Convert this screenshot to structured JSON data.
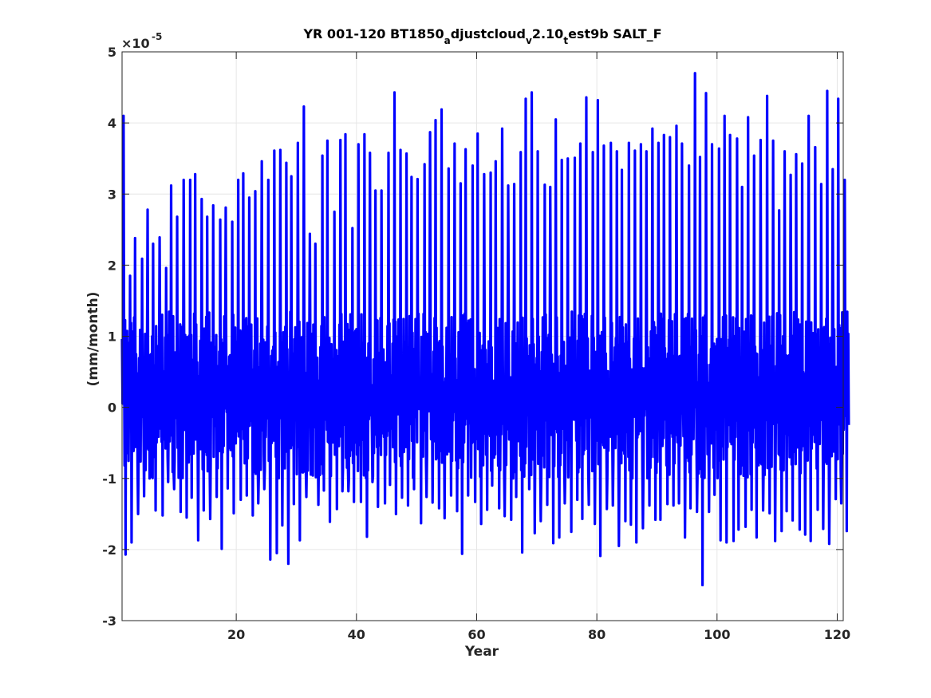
{
  "chart_data": {
    "type": "line",
    "title_parts": {
      "a": "YR 001-120 BT1850",
      "sub1": "a",
      "b": "djustcloud",
      "sub2": "v",
      "c": "2.10",
      "sub3": "t",
      "d": "est9b SALT_F"
    },
    "xlabel": "Year",
    "ylabel": "(mm/month)",
    "exponent_base": "×10",
    "exponent_power": "-5",
    "xlim": [
      1,
      121
    ],
    "ylim": [
      -3,
      5
    ],
    "xticks": [
      20,
      40,
      60,
      80,
      100,
      120
    ],
    "yticks": [
      -3,
      -2,
      -1,
      0,
      1,
      2,
      3,
      4,
      5
    ],
    "grid": true,
    "line_color": "#0000ff",
    "series": [
      {
        "sampling": "monthly",
        "annual_max": [
          4.1,
          1.85,
          2.38,
          2.09,
          2.78,
          2.3,
          2.39,
          1.96,
          3.12,
          2.68,
          3.2,
          3.2,
          3.28,
          2.93,
          2.68,
          2.84,
          2.64,
          2.81,
          2.61,
          3.2,
          3.29,
          2.95,
          3.04,
          3.46,
          3.2,
          3.61,
          3.62,
          3.44,
          3.25,
          3.72,
          4.23,
          2.44,
          2.3,
          3.54,
          3.75,
          2.75,
          3.76,
          3.84,
          2.52,
          3.7,
          3.84,
          3.58,
          3.05,
          3.05,
          3.58,
          4.43,
          3.62,
          3.57,
          3.24,
          3.21,
          3.42,
          3.87,
          4.04,
          4.19,
          3.36,
          3.71,
          3.15,
          3.63,
          3.4,
          3.85,
          3.28,
          3.3,
          3.46,
          3.92,
          3.12,
          3.14,
          3.59,
          4.34,
          4.43,
          3.6,
          3.13,
          3.1,
          4.05,
          3.48,
          3.5,
          3.51,
          3.71,
          4.36,
          3.59,
          4.32,
          3.68,
          3.72,
          3.6,
          3.34,
          3.72,
          3.61,
          3.7,
          3.6,
          3.92,
          3.72,
          3.83,
          3.8,
          3.96,
          3.71,
          3.4,
          4.7,
          3.52,
          4.42,
          3.7,
          3.64,
          4.1,
          3.83,
          3.78,
          3.1,
          4.08,
          3.54,
          3.76,
          4.38,
          3.75,
          2.77,
          3.6,
          3.27,
          3.56,
          3.43,
          4.1,
          3.66,
          3.14,
          4.45,
          3.35,
          4.34,
          3.2
        ],
        "annual_min": [
          -2.07,
          -1.9,
          -1.5,
          -1.25,
          -1.0,
          -1.45,
          -1.52,
          -1.05,
          -1.15,
          -1.47,
          -1.55,
          -1.27,
          -1.87,
          -1.45,
          -1.57,
          -1.26,
          -1.99,
          -1.14,
          -1.49,
          -1.3,
          -1.24,
          -1.52,
          -1.35,
          -1.15,
          -2.14,
          -2.05,
          -1.66,
          -2.2,
          -1.36,
          -1.87,
          -1.26,
          -0.96,
          -1.37,
          -1.17,
          -1.61,
          -1.43,
          -1.18,
          -1.18,
          -1.33,
          -1.33,
          -1.82,
          -1.05,
          -1.4,
          -1.35,
          -1.09,
          -1.5,
          -1.27,
          -1.38,
          -1.15,
          -1.63,
          -1.26,
          -1.34,
          -1.42,
          -1.56,
          -1.24,
          -1.46,
          -2.06,
          -1.24,
          -1.33,
          -1.64,
          -1.44,
          -1.1,
          -1.42,
          -1.53,
          -1.58,
          -1.26,
          -2.04,
          -1.15,
          -1.77,
          -1.6,
          -1.37,
          -1.91,
          -1.83,
          -1.35,
          -1.75,
          -1.3,
          -1.57,
          -1.37,
          -1.64,
          -2.09,
          -1.43,
          -1.38,
          -1.95,
          -1.6,
          -1.65,
          -1.9,
          -1.7,
          -1.38,
          -1.58,
          -1.58,
          -1.36,
          -1.38,
          -1.35,
          -1.83,
          -1.42,
          -1.47,
          -2.5,
          -1.47,
          -1.23,
          -1.87,
          -1.9,
          -1.88,
          -1.72,
          -1.68,
          -1.44,
          -1.83,
          -1.45,
          -1.49,
          -1.88,
          -1.74,
          -1.46,
          -1.59,
          -1.72,
          -1.79,
          -1.88,
          -1.44,
          -1.71,
          -1.92,
          -1.29,
          -1.35,
          -1.74
        ]
      }
    ]
  }
}
